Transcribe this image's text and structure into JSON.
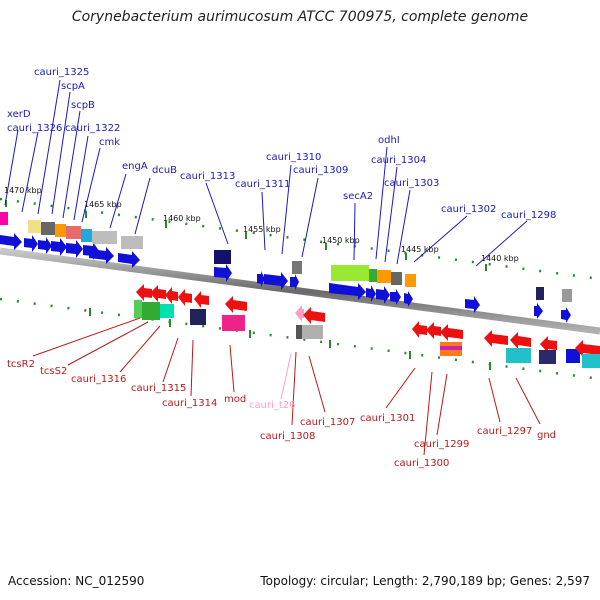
{
  "title": "Corynebacterium aurimucosum ATCC 700975, complete genome",
  "footer": {
    "accession": "Accession: NC_012590",
    "topology": "Topology: circular; Length: 2,790,189 bp; Genes: 2,597"
  },
  "colors": {
    "forward": "#1010d8",
    "reverse": "#ee1010",
    "trna": "#ff9fc8",
    "label_forward": "#1a1ab8",
    "label_reverse": "#b81a1a",
    "tick": "#2a8a2a"
  },
  "kbp_labels": [
    "1470 kbp",
    "1465 kbp",
    "1460 kbp",
    "1455 kbp",
    "1450 kbp",
    "1445 kbp",
    "1440 kbp"
  ],
  "forward_genes": [
    "cauri_1325",
    "scpA",
    "scpB",
    "xerD",
    "cauri_1326",
    "cauri_1322",
    "cmk",
    "engA",
    "dcuB",
    "cauri_1313",
    "cauri_1310",
    "cauri_1311",
    "cauri_1309",
    "odhI",
    "cauri_1304",
    "cauri_1303",
    "secA2",
    "cauri_1302",
    "cauri_1298"
  ],
  "reverse_genes": [
    "tcsR2",
    "tcsS2",
    "cauri_1316",
    "cauri_1315",
    "cauri_1314",
    "mod",
    "cauri_t26",
    "cauri_1308",
    "cauri_1307",
    "cauri_1301",
    "cauri_1299",
    "cauri_1300",
    "cauri_1297",
    "gnd"
  ]
}
